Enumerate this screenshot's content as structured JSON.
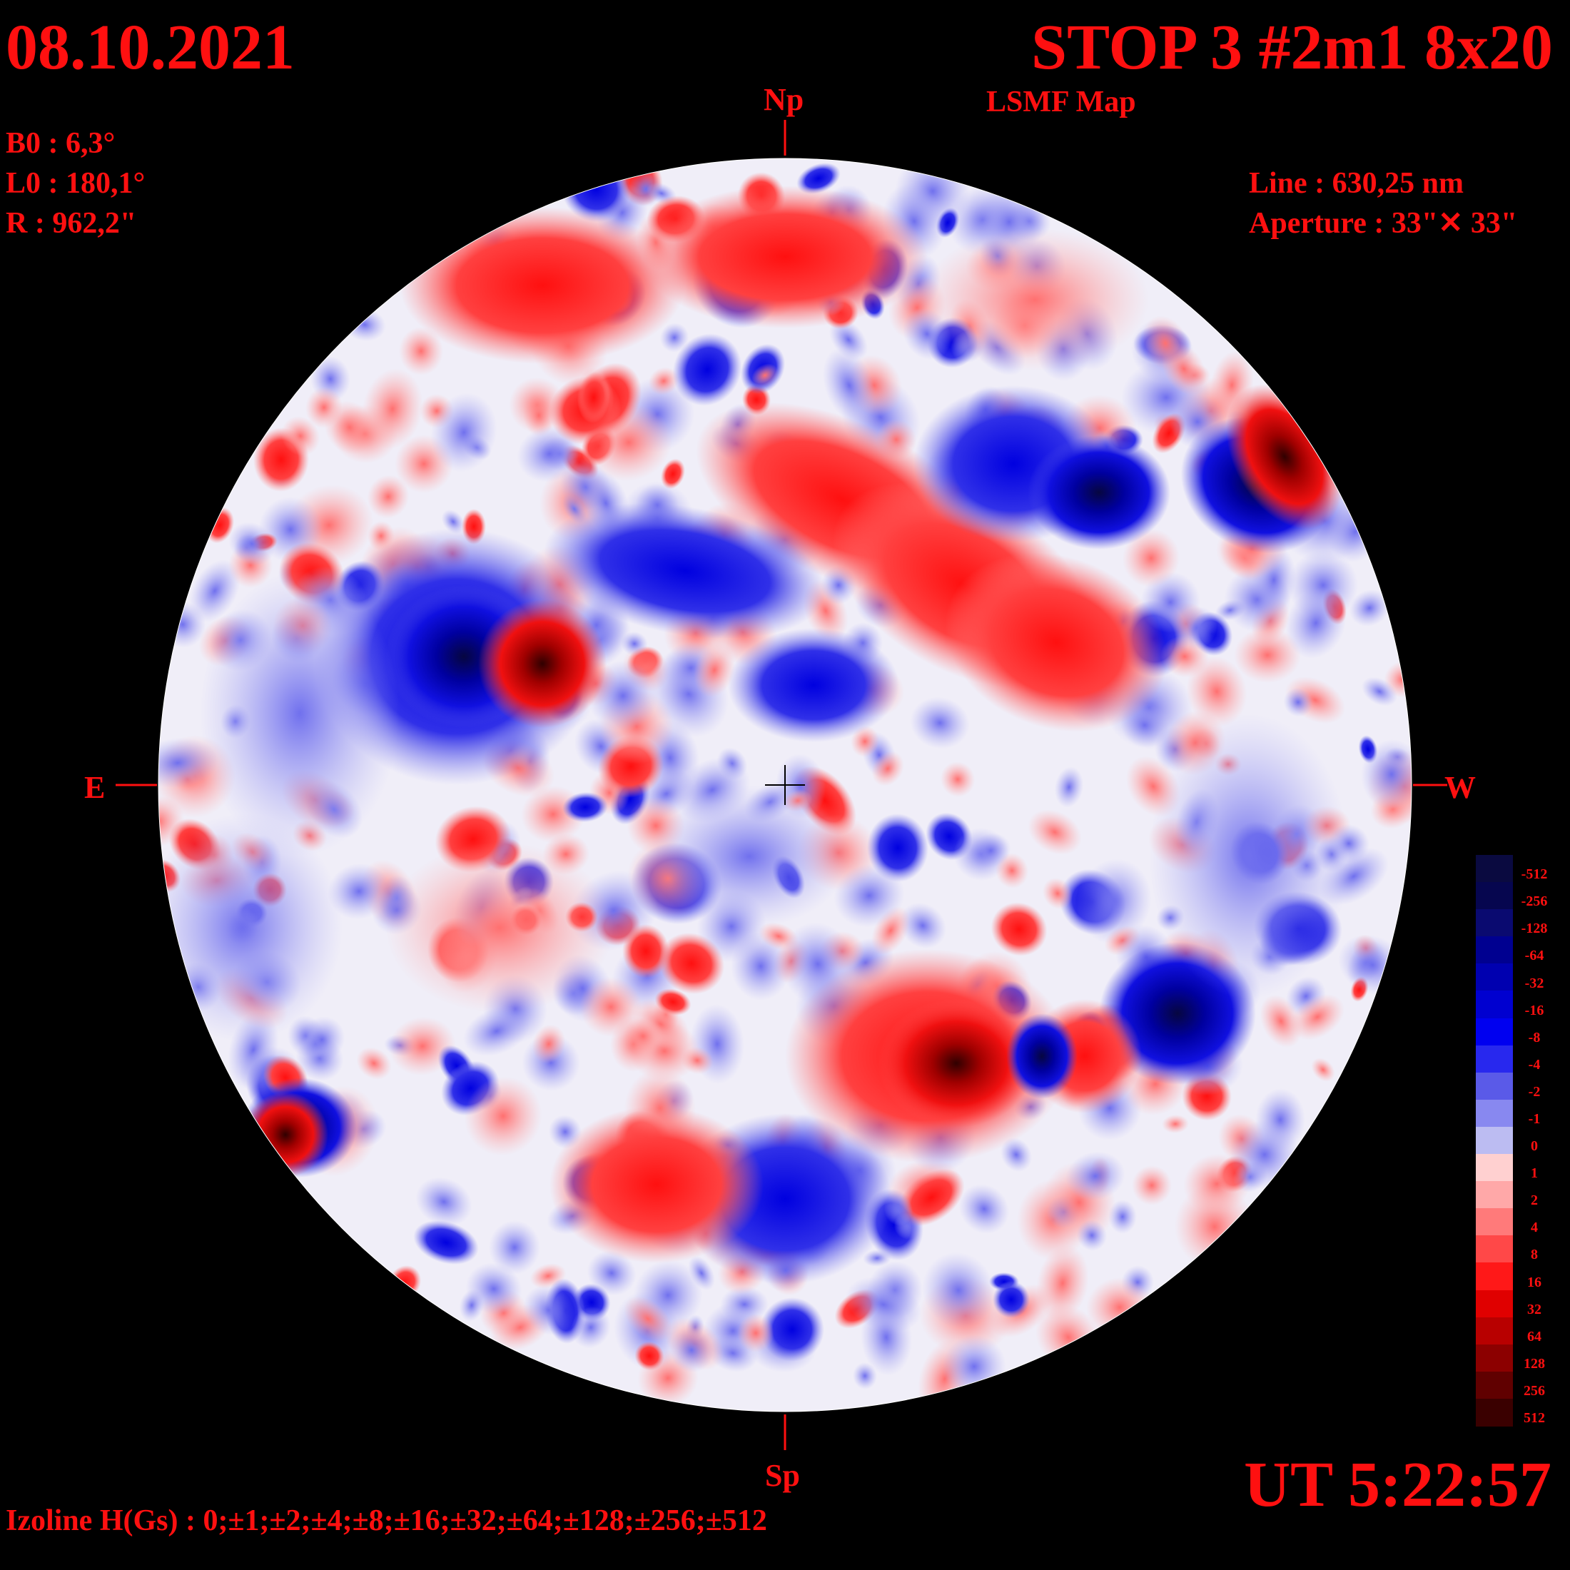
{
  "header": {
    "date": "08.10.2021",
    "title": "STOP 3 #2m1 8x20",
    "subtitle": "LSMF  Map"
  },
  "params": {
    "b0": "B0 : 6,3°",
    "l0": "L0 : 180,1°",
    "r": "R  : 962,2\"",
    "line": "Line :  630,25 nm",
    "aperture": "Aperture : 33\"✕ 33\""
  },
  "compass": {
    "north": "Np",
    "south": "Sp",
    "east": "E",
    "west": "W"
  },
  "time": "UT 5:22:57",
  "isolines": "Izoline H(Gs) : 0;±1;±2;±4;±8;±16;±32;±64;±128;±256;±512",
  "legend": {
    "labels": [
      "-512",
      "-256",
      "-128",
      "-64",
      "-32",
      "-16",
      "-8",
      "-4",
      "-2",
      "-1",
      "0",
      "1",
      "2",
      "4",
      "8",
      "16",
      "32",
      "64",
      "128",
      "256",
      "512"
    ],
    "colors": [
      "#0a0a40",
      "#06064f",
      "#0a0a70",
      "#000090",
      "#0000b0",
      "#0000d0",
      "#0000f0",
      "#2828ee",
      "#5a5ae8",
      "#8888f0",
      "#bcbcf2",
      "#ffd0d0",
      "#ffa8a8",
      "#ff7a7a",
      "#ff4848",
      "#ff1818",
      "#e00000",
      "#b80000",
      "#8c0000",
      "#600000",
      "#3a0000"
    ]
  },
  "map": {
    "positive_color": "#ff2020",
    "negative_color": "#1414e8",
    "neutral_color": "#f4f4ff"
  }
}
